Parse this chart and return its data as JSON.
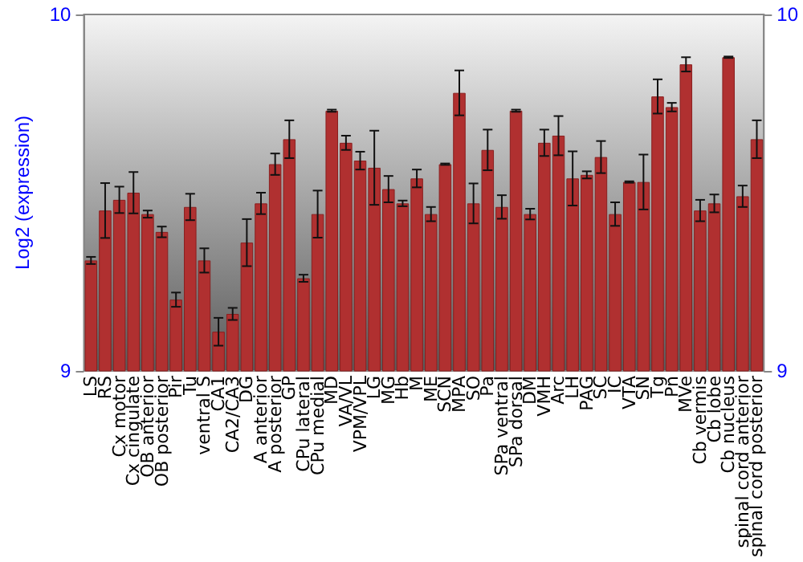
{
  "chart_data": {
    "type": "bar",
    "ylabel": "Log2 (expression)",
    "categories": [
      "LS",
      "RS",
      "Cx motor",
      "Cx cingulate",
      "OB anterior",
      "OB posterior",
      "Pir",
      "Tu",
      "ventral S",
      "CA1",
      "CA2/CA3",
      "DG",
      "A anterior",
      "A posterior",
      "GP",
      "CPu lateral",
      "CPu medial",
      "MD",
      "VA/VL",
      "VPM/VPL",
      "LG",
      "MG",
      "Hb",
      "M",
      "ME",
      "SCN",
      "MPA",
      "SO",
      "Pa",
      "SPa ventral",
      "SPa dorsal",
      "DM",
      "VMH",
      "Arc",
      "LH",
      "PAG",
      "SC",
      "IC",
      "VTA",
      "SN",
      "Tg",
      "Pn",
      "MVe",
      "Cb vermis",
      "Cb lobe",
      "Cb nucleus",
      "spinal cord anterior",
      "spinal cord posterior"
    ],
    "values": [
      9.31,
      9.45,
      9.48,
      9.5,
      9.44,
      9.39,
      9.2,
      9.46,
      9.31,
      9.11,
      9.16,
      9.36,
      9.47,
      9.58,
      9.65,
      9.26,
      9.44,
      9.73,
      9.64,
      9.59,
      9.57,
      9.51,
      9.47,
      9.54,
      9.44,
      9.58,
      9.78,
      9.47,
      9.62,
      9.46,
      9.73,
      9.44,
      9.64,
      9.66,
      9.54,
      9.55,
      9.6,
      9.44,
      9.53,
      9.53,
      9.77,
      9.74,
      9.86,
      9.45,
      9.47,
      9.88,
      9.49,
      9.65
    ],
    "errors": [
      0.01,
      0.077,
      0.037,
      0.058,
      0.01,
      0.015,
      0.02,
      0.037,
      0.034,
      0.039,
      0.017,
      0.066,
      0.03,
      0.03,
      0.053,
      0.01,
      0.066,
      0.003,
      0.02,
      0.025,
      0.104,
      0.037,
      0.008,
      0.025,
      0.02,
      0.002,
      0.063,
      0.056,
      0.057,
      0.033,
      0.003,
      0.015,
      0.037,
      0.055,
      0.076,
      0.01,
      0.045,
      0.033,
      0.002,
      0.077,
      0.048,
      0.012,
      0.02,
      0.03,
      0.025,
      0.002,
      0.03,
      0.053
    ],
    "color": "#b03030",
    "ylim": [
      9,
      10
    ],
    "yticks": [
      9,
      10
    ],
    "y2lim": [
      9,
      10
    ],
    "y2ticks": [
      9,
      10
    ]
  }
}
